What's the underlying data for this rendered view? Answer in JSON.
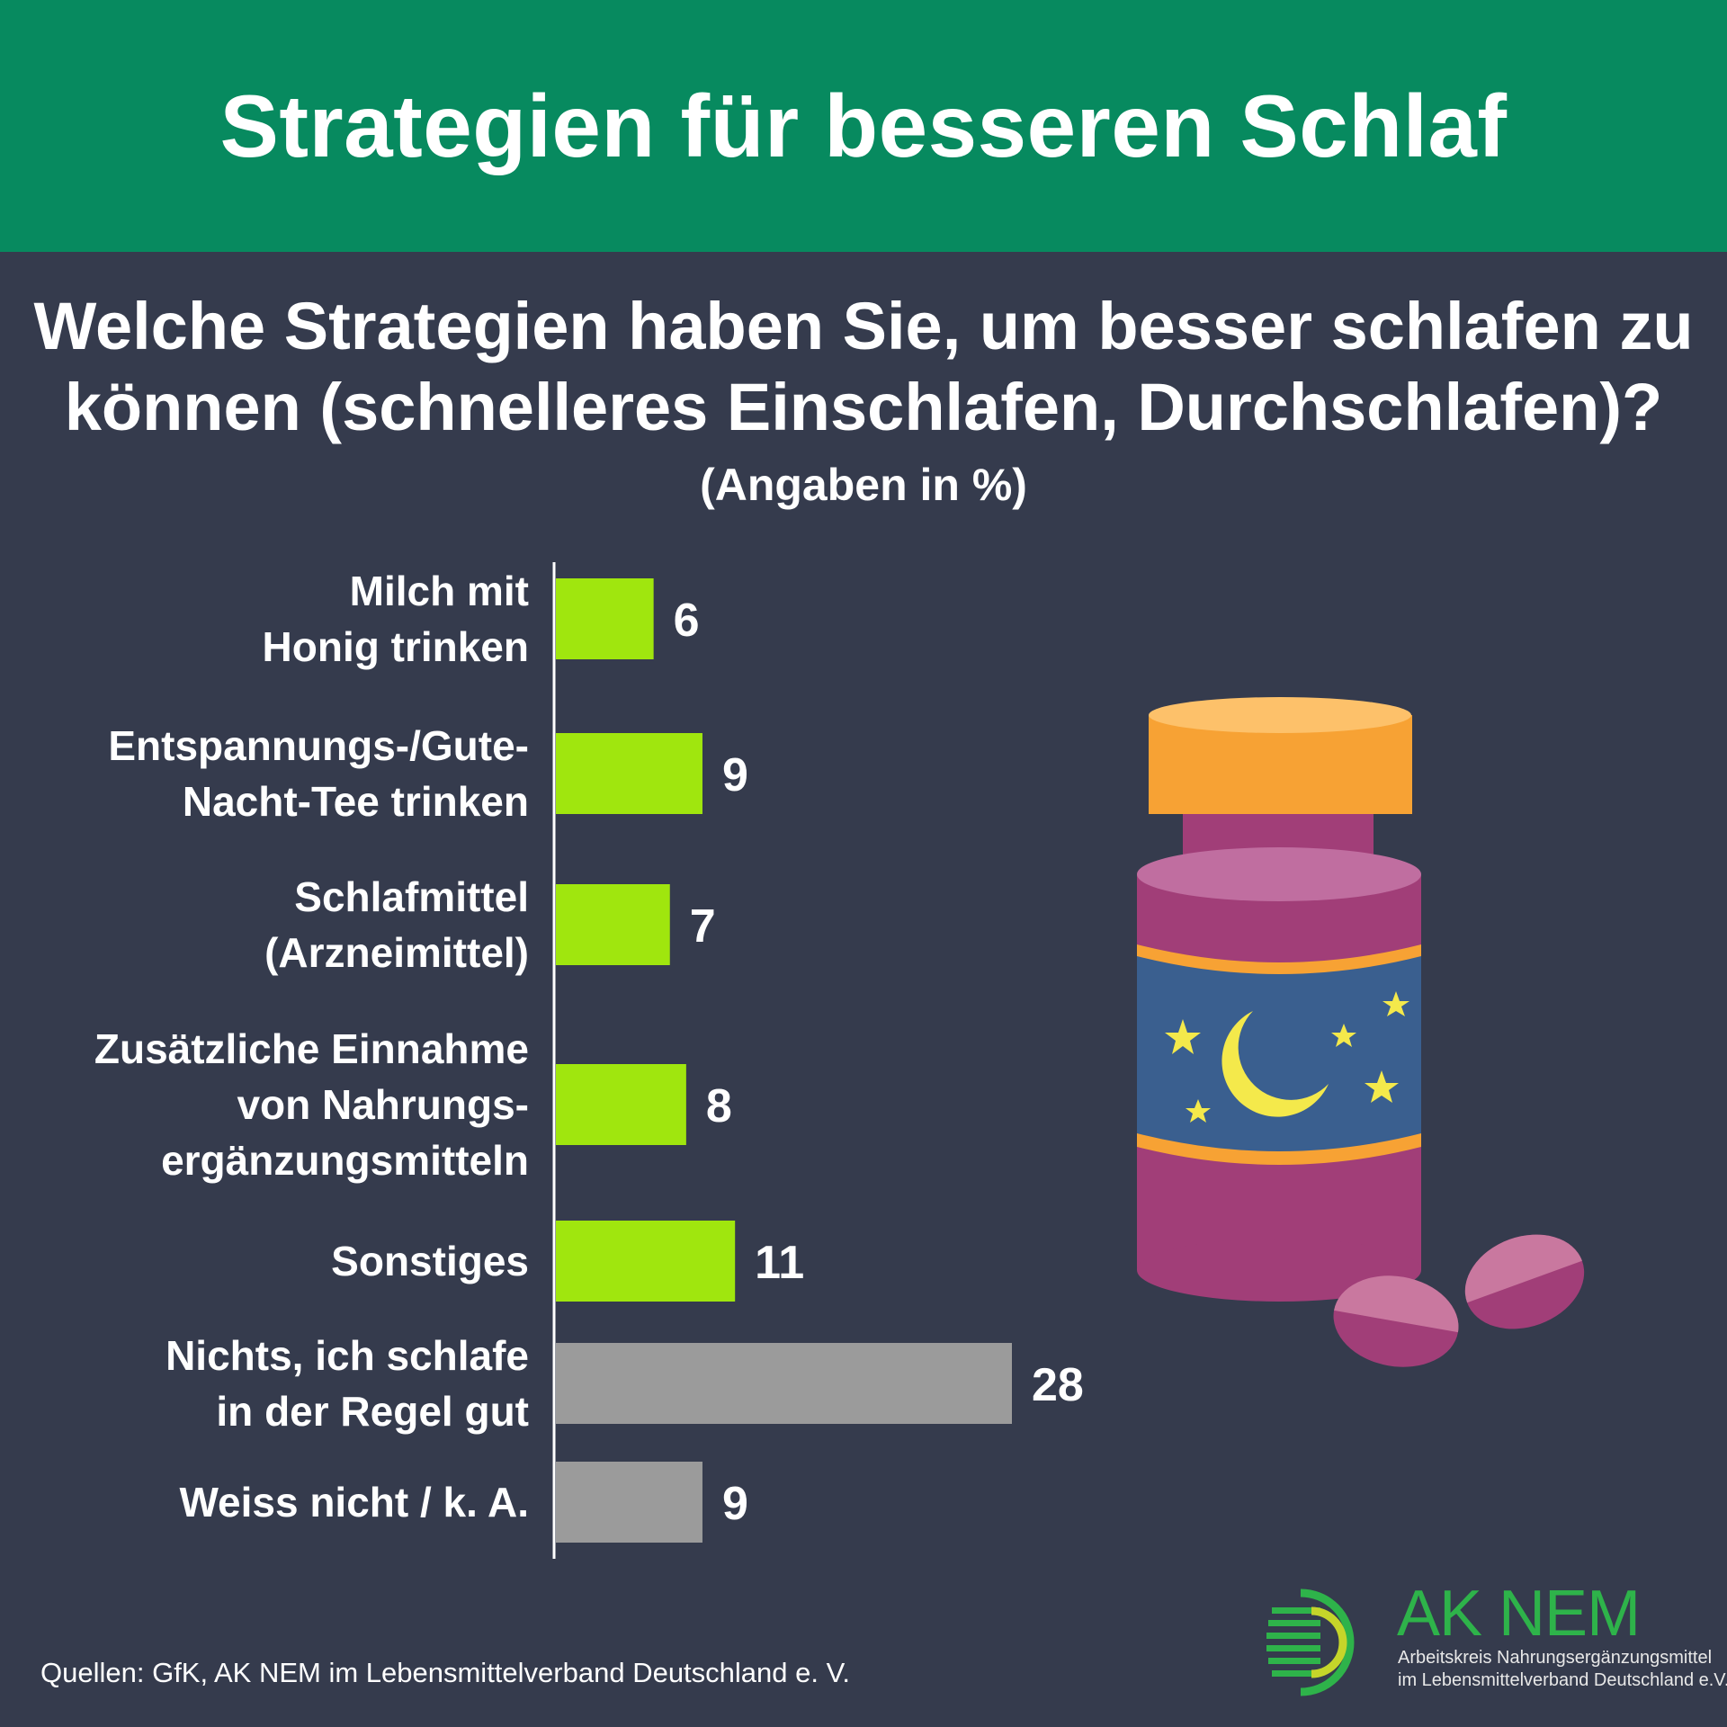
{
  "header": {
    "title": "Strategien für besseren Schlaf"
  },
  "question": {
    "line1": "Welche Strategien haben Sie, um besser schlafen zu",
    "line2": "können (schnelleres Einschlafen, Durchschlafen)?",
    "unit": "(Angaben in %)"
  },
  "colors": {
    "background": "#353b4d",
    "header": "#078a5f",
    "bar_highlight": "#a0e60e",
    "bar_neutral": "#9b9b9b"
  },
  "chart_data": {
    "type": "bar",
    "orientation": "horizontal",
    "categories": [
      [
        "Milch mit",
        "Honig trinken"
      ],
      [
        "Entspannungs-/Gute-",
        "Nacht-Tee trinken"
      ],
      [
        "Schlafmittel",
        "(Arzneimittel)"
      ],
      [
        "Zusätzliche Einnahme",
        "von Nahrungs-",
        "ergänzungsmitteln"
      ],
      [
        "Sonstiges"
      ],
      [
        "Nichts, ich schlafe",
        "in der Regel gut"
      ],
      [
        "Weiss nicht / k. A."
      ]
    ],
    "values": [
      6,
      9,
      7,
      8,
      11,
      28,
      9
    ],
    "bar_color_group": [
      "highlight",
      "highlight",
      "highlight",
      "highlight",
      "highlight",
      "neutral",
      "neutral"
    ],
    "value_unit": "%",
    "xlim": [
      0,
      28
    ],
    "grid": false,
    "legend": "none"
  },
  "illustration": {
    "icon": "pill-bottle-icon",
    "decoration": [
      "moon-icon",
      "star-icon",
      "pill-icon"
    ]
  },
  "source": "Quellen: GfK, AK NEM im Lebensmittelverband Deutschland e. V.",
  "logo": {
    "name": "AK NEM",
    "line1": "Arbeitskreis Nahrungsergänzungsmittel",
    "line2": "im Lebensmittelverband Deutschland e.V."
  }
}
